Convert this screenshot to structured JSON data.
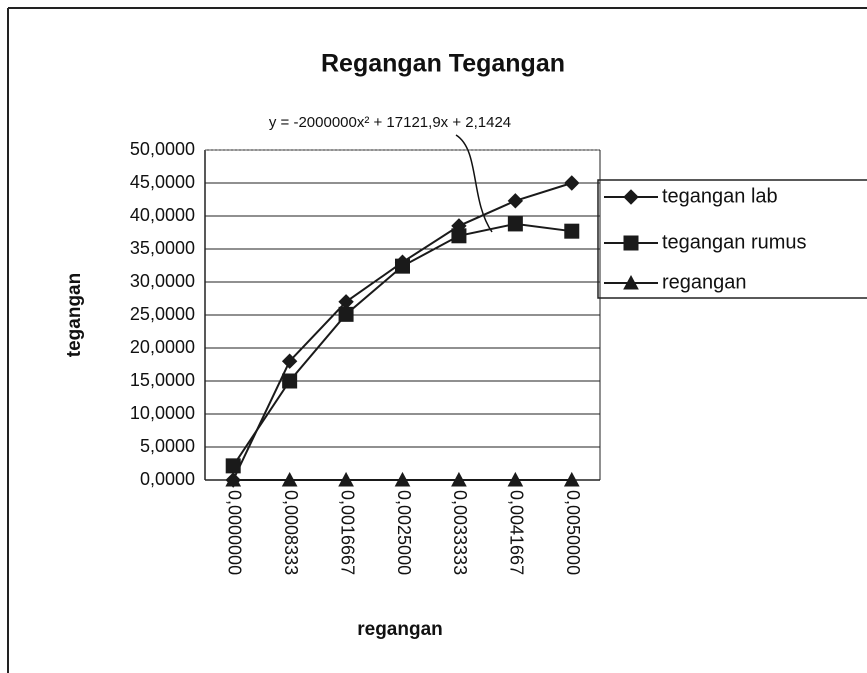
{
  "chart_data": {
    "type": "line",
    "title": "Regangan Tegangan",
    "annotation": "y = -2000000x² + 17121,9x + 2,1424",
    "x_label": "regangan",
    "y_label": "tegangan",
    "categories": [
      "0,0000000",
      "0,0008333",
      "0,0016667",
      "0,0025000",
      "0,0033333",
      "0,0041667",
      "0,0050000"
    ],
    "series": [
      {
        "name": "tegangan lab",
        "color": "#1a1a1a",
        "marker": "diamond",
        "values": [
          0,
          18,
          27,
          33,
          38.5,
          42.3,
          45
        ]
      },
      {
        "name": "tegangan rumus",
        "color": "#1a1a1a",
        "marker": "square",
        "values": [
          2.1424,
          15.0,
          25.1,
          32.4,
          37.0,
          38.8,
          37.7
        ]
      },
      {
        "name": "regangan",
        "color": "#1a1a1a",
        "marker": "triangle",
        "values": [
          0,
          0.0008333,
          0.0016667,
          0.0025,
          0.0033333,
          0.0041667,
          0.005
        ]
      }
    ],
    "ylim": [
      0,
      50
    ],
    "yticks": [
      {
        "value": 0,
        "label": "0,0000"
      },
      {
        "value": 5,
        "label": "5,0000"
      },
      {
        "value": 10,
        "label": "10,0000"
      },
      {
        "value": 15,
        "label": "15,0000"
      },
      {
        "value": 20,
        "label": "20,0000"
      },
      {
        "value": 25,
        "label": "25,0000"
      },
      {
        "value": 30,
        "label": "30,0000"
      },
      {
        "value": 35,
        "label": "35,0000"
      },
      {
        "value": 40,
        "label": "40,0000"
      },
      {
        "value": 45,
        "label": "45,0000"
      },
      {
        "value": 50,
        "label": "50,0000"
      }
    ],
    "grid": true,
    "legend": "right"
  }
}
